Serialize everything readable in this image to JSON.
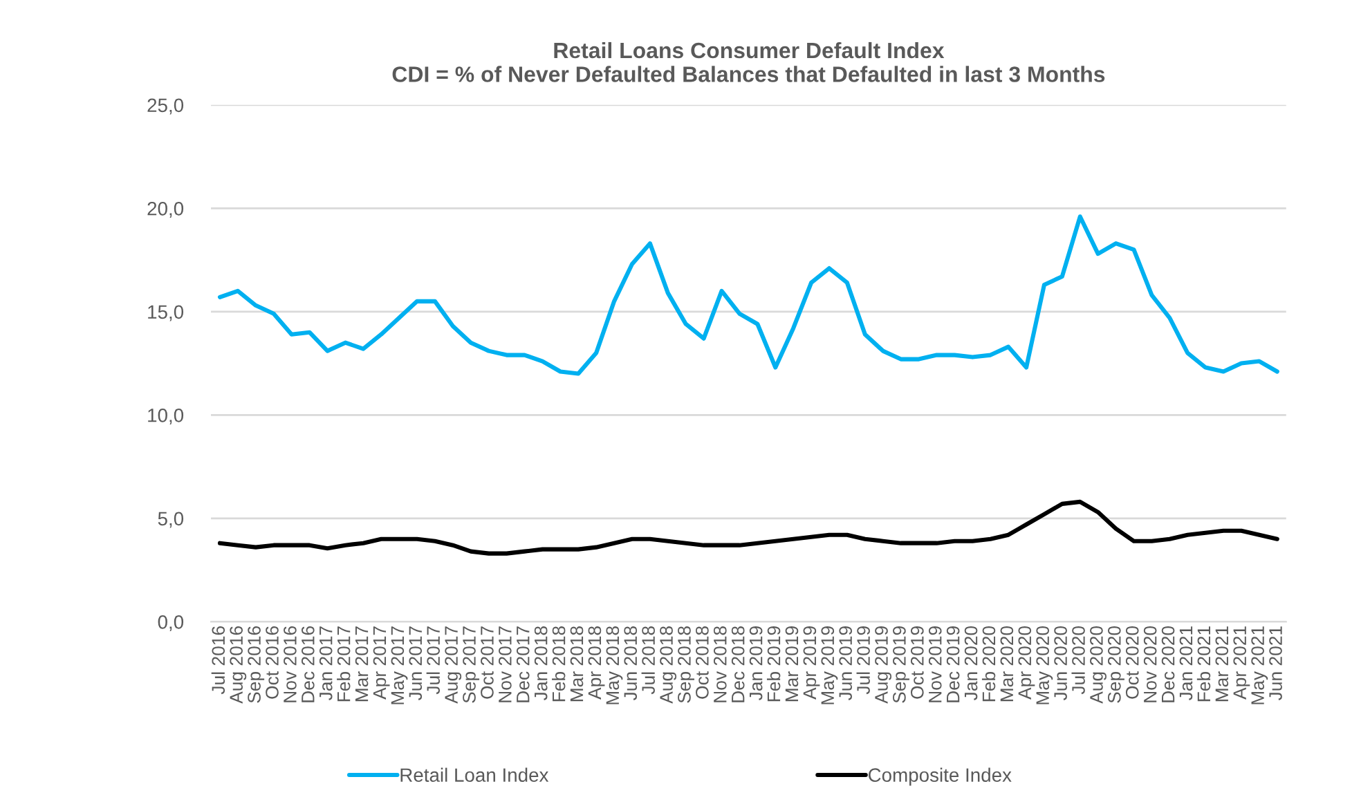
{
  "chart_data": {
    "type": "line",
    "title": "Retail Loans Consumer Default Index\nCDI = % of Never Defaulted Balances that Defaulted in last 3 Months",
    "categories": [
      "Jul 2016",
      "Aug 2016",
      "Sep 2016",
      "Oct 2016",
      "Nov 2016",
      "Dec 2016",
      "Jan 2017",
      "Feb 2017",
      "Mar 2017",
      "Apr 2017",
      "May 2017",
      "Jun 2017",
      "Jul 2017",
      "Aug 2017",
      "Sep 2017",
      "Oct 2017",
      "Nov 2017",
      "Dec 2017",
      "Jan 2018",
      "Feb 2018",
      "Mar 2018",
      "Apr 2018",
      "May 2018",
      "Jun 2018",
      "Jul 2018",
      "Aug 2018",
      "Sep 2018",
      "Oct 2018",
      "Nov 2018",
      "Dec 2018",
      "Jan 2019",
      "Feb 2019",
      "Mar 2019",
      "Apr 2019",
      "May 2019",
      "Jun 2019",
      "Jul 2019",
      "Aug 2019",
      "Sep 2019",
      "Oct 2019",
      "Nov 2019",
      "Dec 2019",
      "Jan 2020",
      "Feb 2020",
      "Mar 2020",
      "Apr 2020",
      "May 2020",
      "Jun 2020",
      "Jul 2020",
      "Aug 2020",
      "Sep 2020",
      "Oct 2020",
      "Nov 2020",
      "Dec 2020",
      "Jan 2021",
      "Feb 2021",
      "Mar 2021",
      "Apr 2021",
      "May 2021",
      "Jun 2021"
    ],
    "series": [
      {
        "name": "Retail Loan Index",
        "color": "#00b0f0",
        "values": [
          15.7,
          16.0,
          15.3,
          14.9,
          13.9,
          14.0,
          13.1,
          13.5,
          13.2,
          13.9,
          14.7,
          15.5,
          15.5,
          14.3,
          13.5,
          13.1,
          12.9,
          12.9,
          12.6,
          12.1,
          12.0,
          13.0,
          15.5,
          17.3,
          18.3,
          15.9,
          14.4,
          13.7,
          16.0,
          14.9,
          14.4,
          12.3,
          14.2,
          16.4,
          17.1,
          16.4,
          13.9,
          13.1,
          12.7,
          12.7,
          12.9,
          12.9,
          12.8,
          12.9,
          13.3,
          12.3,
          16.3,
          16.7,
          19.6,
          17.8,
          18.3,
          18.0,
          15.8,
          14.7,
          13.0,
          12.3,
          12.1,
          12.5,
          12.6,
          12.1
        ]
      },
      {
        "name": "Composite Index",
        "color": "#000000",
        "values": [
          3.8,
          3.7,
          3.6,
          3.7,
          3.7,
          3.7,
          3.55,
          3.7,
          3.8,
          4.0,
          4.0,
          4.0,
          3.9,
          3.7,
          3.4,
          3.3,
          3.3,
          3.4,
          3.5,
          3.5,
          3.5,
          3.6,
          3.8,
          4.0,
          4.0,
          3.9,
          3.8,
          3.7,
          3.7,
          3.7,
          3.8,
          3.9,
          4.0,
          4.1,
          4.2,
          4.2,
          4.0,
          3.9,
          3.8,
          3.8,
          3.8,
          3.9,
          3.9,
          4.0,
          4.2,
          4.7,
          5.2,
          5.7,
          5.8,
          5.3,
          4.5,
          3.9,
          3.9,
          4.0,
          4.2,
          4.3,
          4.4,
          4.4,
          4.2,
          4.0
        ]
      }
    ],
    "ylim": [
      0,
      25
    ],
    "yticks": [
      {
        "value": 0,
        "label": "0,0"
      },
      {
        "value": 5,
        "label": "5,0"
      },
      {
        "value": 10,
        "label": "10,0"
      },
      {
        "value": 15,
        "label": "15,0"
      },
      {
        "value": 20,
        "label": "20,0"
      },
      {
        "value": 25,
        "label": "25,0"
      }
    ],
    "grid": "y",
    "legend": "bottom"
  }
}
